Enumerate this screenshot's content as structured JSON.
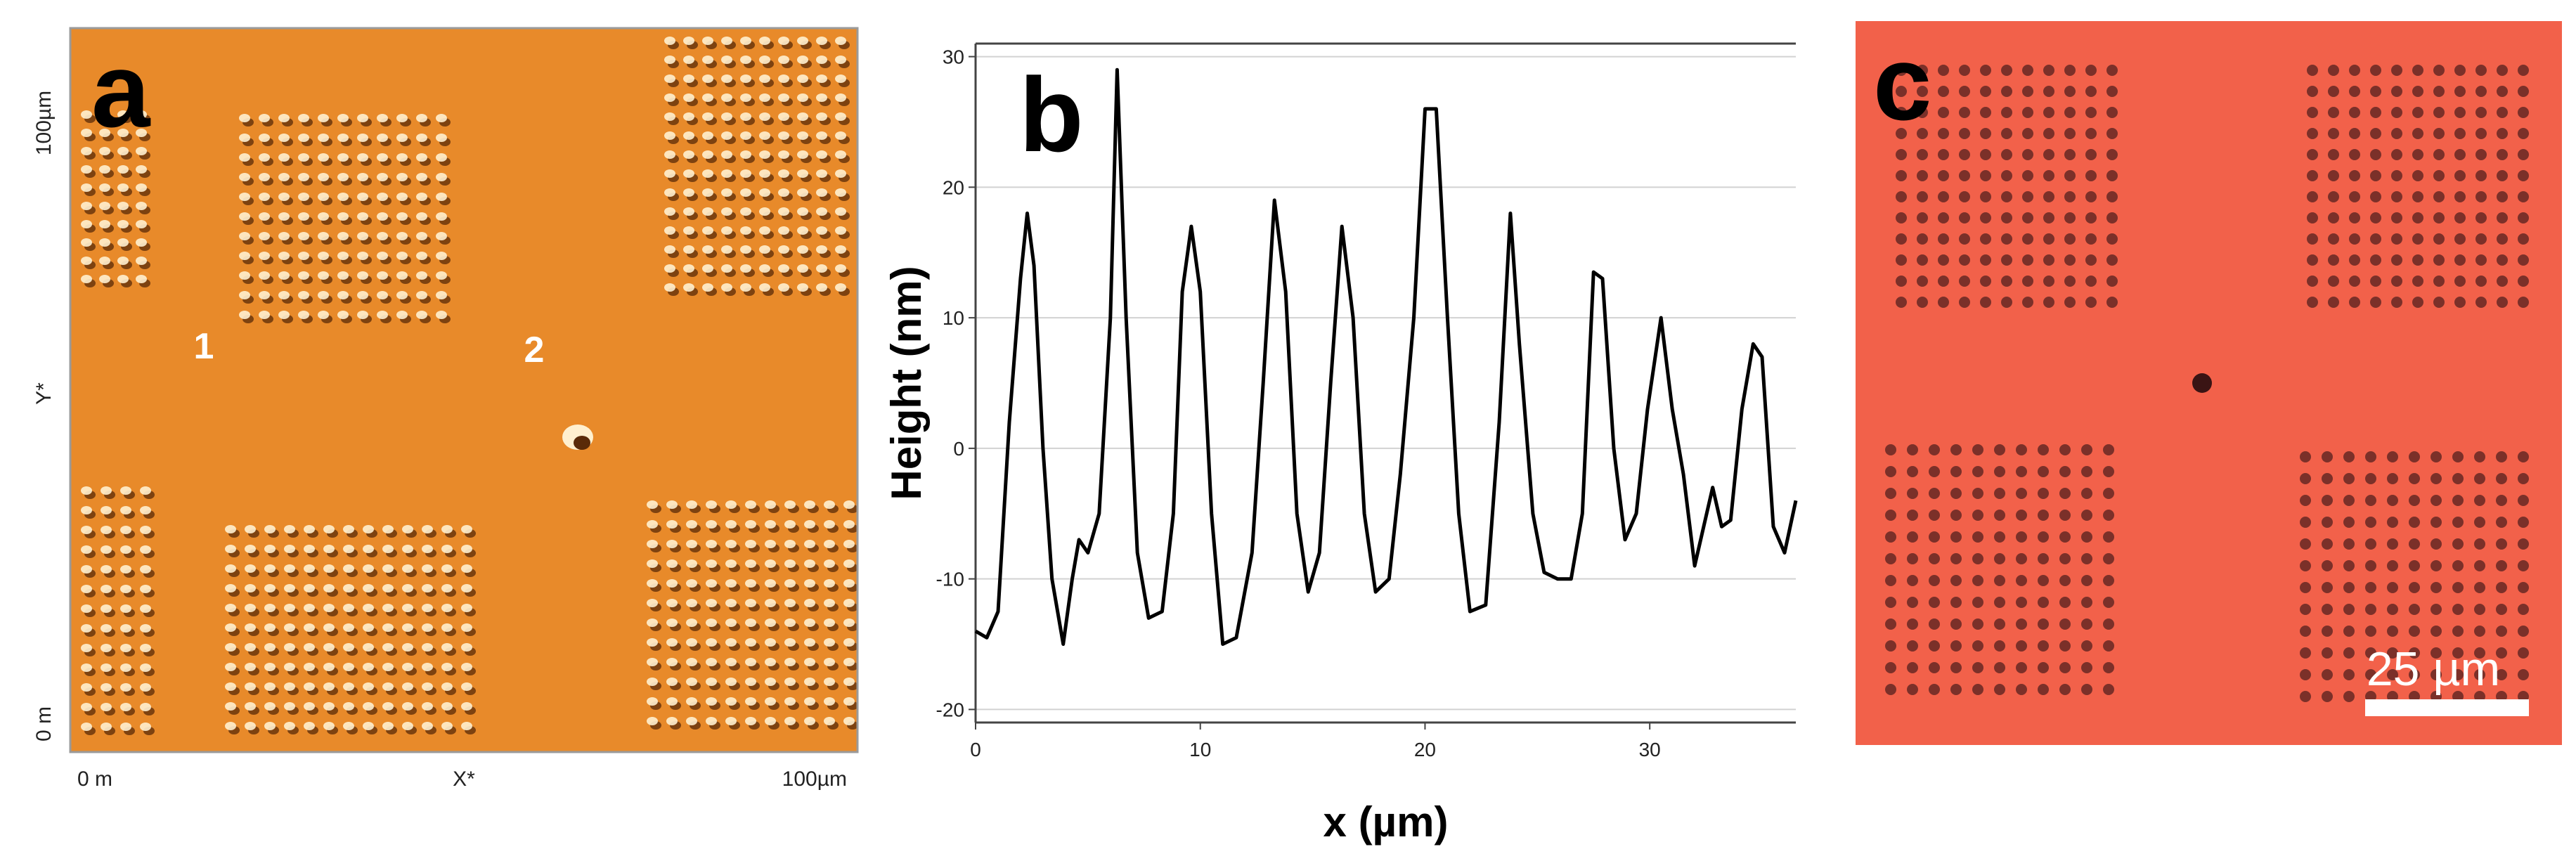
{
  "panels": {
    "a": {
      "letter": "a",
      "y_axis_label": "Y*",
      "y_tick_top": "100µm",
      "y_tick_bottom": "0 m",
      "x_tick_left": "0 m",
      "x_axis_label": "X*",
      "x_tick_right": "100µm",
      "marker_1": "1",
      "marker_2": "2",
      "colors": {
        "background": "#e88a2a",
        "feature_light": "#fff0cf",
        "feature_dark": "#5a2a08"
      }
    },
    "b": {
      "letter": "b"
    },
    "c": {
      "letter": "c",
      "scalebar_label": "25 µm",
      "colors": {
        "background": "#f2614a",
        "dot": "#6e2b26",
        "scalebar": "#ffffff"
      }
    }
  },
  "chart_data": {
    "type": "line",
    "xlabel": "x (µm)",
    "ylabel": "Height (nm)",
    "xlim": [
      0,
      36.5
    ],
    "ylim": [
      -21,
      31
    ],
    "x_ticks": [
      0,
      10,
      20,
      30
    ],
    "y_ticks": [
      -20,
      -10,
      0,
      10,
      20,
      30
    ],
    "line_color": "#000000",
    "points": [
      [
        0.0,
        -14
      ],
      [
        0.5,
        -14.5
      ],
      [
        1.0,
        -12.5
      ],
      [
        1.5,
        2
      ],
      [
        2.0,
        13
      ],
      [
        2.3,
        18
      ],
      [
        2.6,
        14
      ],
      [
        3.0,
        0
      ],
      [
        3.4,
        -10
      ],
      [
        3.9,
        -15
      ],
      [
        4.3,
        -10
      ],
      [
        4.6,
        -7
      ],
      [
        5.0,
        -8
      ],
      [
        5.5,
        -5
      ],
      [
        6.0,
        10
      ],
      [
        6.3,
        29
      ],
      [
        6.7,
        10
      ],
      [
        7.2,
        -8
      ],
      [
        7.7,
        -13
      ],
      [
        8.3,
        -12.5
      ],
      [
        8.8,
        -5
      ],
      [
        9.2,
        12
      ],
      [
        9.6,
        17
      ],
      [
        10.0,
        12
      ],
      [
        10.5,
        -5
      ],
      [
        11.0,
        -15
      ],
      [
        11.6,
        -14.5
      ],
      [
        12.3,
        -8
      ],
      [
        12.8,
        5
      ],
      [
        13.3,
        19
      ],
      [
        13.8,
        12
      ],
      [
        14.3,
        -5
      ],
      [
        14.8,
        -11
      ],
      [
        15.3,
        -8
      ],
      [
        15.8,
        5
      ],
      [
        16.3,
        17
      ],
      [
        16.8,
        10
      ],
      [
        17.3,
        -5
      ],
      [
        17.8,
        -11
      ],
      [
        18.4,
        -10
      ],
      [
        18.9,
        -2
      ],
      [
        19.5,
        10
      ],
      [
        20.0,
        26
      ],
      [
        20.5,
        26
      ],
      [
        21.0,
        10
      ],
      [
        21.5,
        -5
      ],
      [
        22.0,
        -12.5
      ],
      [
        22.7,
        -12
      ],
      [
        23.3,
        2
      ],
      [
        23.8,
        18
      ],
      [
        24.2,
        8
      ],
      [
        24.8,
        -5
      ],
      [
        25.3,
        -9.5
      ],
      [
        25.9,
        -10
      ],
      [
        26.5,
        -10
      ],
      [
        27.0,
        -5
      ],
      [
        27.5,
        13.5
      ],
      [
        27.9,
        13
      ],
      [
        28.4,
        0
      ],
      [
        28.9,
        -7
      ],
      [
        29.4,
        -5
      ],
      [
        29.9,
        3
      ],
      [
        30.5,
        10
      ],
      [
        31.0,
        3
      ],
      [
        31.5,
        -2
      ],
      [
        32.0,
        -9
      ],
      [
        32.4,
        -6
      ],
      [
        32.8,
        -3
      ],
      [
        33.2,
        -6
      ],
      [
        33.6,
        -5.5
      ],
      [
        34.1,
        3
      ],
      [
        34.6,
        8
      ],
      [
        35.0,
        7
      ],
      [
        35.5,
        -6
      ],
      [
        36.0,
        -8
      ],
      [
        36.5,
        -4
      ]
    ]
  }
}
